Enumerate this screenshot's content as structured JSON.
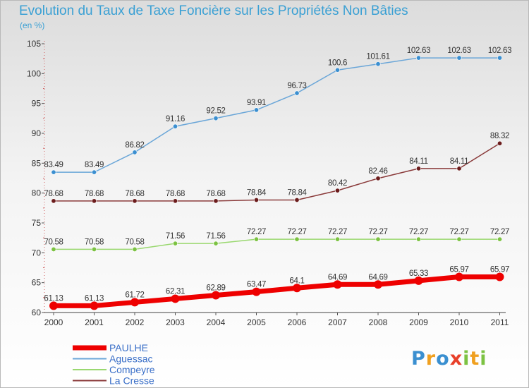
{
  "title": "Evolution du Taux de Taxe Foncière sur les Propriétés Non Bâties",
  "unit_label": "(en %)",
  "logo_text": "Proxiti",
  "chart_data": {
    "type": "line",
    "x": [
      "2000",
      "2001",
      "2002",
      "2003",
      "2004",
      "2005",
      "2006",
      "2007",
      "2008",
      "2009",
      "2010",
      "2011"
    ],
    "ylim": [
      60,
      105
    ],
    "yticks": [
      60,
      65,
      70,
      75,
      80,
      85,
      90,
      95,
      100,
      105
    ],
    "grid": false,
    "legend_position": "bottom-left",
    "series": [
      {
        "name": "Aguessac",
        "color": "#6aa6d8",
        "marker_color": "#3b8fd0",
        "values": [
          83.49,
          83.49,
          86.82,
          91.16,
          92.52,
          93.91,
          96.73,
          100.6,
          101.61,
          102.63,
          102.63,
          102.63
        ],
        "labels": [
          "83.49",
          "83.49",
          "86.82",
          "91.16",
          "92.52",
          "93.91",
          "96.73",
          "100.6",
          "101.61",
          "102.63",
          "102.63",
          "102.63"
        ]
      },
      {
        "name": "La Cresse",
        "color": "#8a3a3a",
        "marker_color": "#6b1c1c",
        "values": [
          78.68,
          78.68,
          78.68,
          78.68,
          78.68,
          78.84,
          78.84,
          80.42,
          82.46,
          84.11,
          84.11,
          88.32
        ],
        "labels": [
          "78.68",
          "78.68",
          "78.68",
          "78.68",
          "78.68",
          "78.84",
          "78.84",
          "80.42",
          "82.46",
          "84.11",
          "84.11",
          "88.32"
        ]
      },
      {
        "name": "Compeyre",
        "color": "#9ad870",
        "marker_color": "#7cc242",
        "values": [
          70.58,
          70.58,
          70.58,
          71.56,
          71.56,
          72.27,
          72.27,
          72.27,
          72.27,
          72.27,
          72.27,
          72.27
        ],
        "labels": [
          "70.58",
          "70.58",
          "70.58",
          "71.56",
          "71.56",
          "72.27",
          "72.27",
          "72.27",
          "72.27",
          "72.27",
          "72.27",
          "72.27"
        ]
      },
      {
        "name": "PAULHE",
        "color": "#ee0000",
        "marker_color": "#ee0000",
        "bold": true,
        "values": [
          61.13,
          61.13,
          61.72,
          62.31,
          62.89,
          63.47,
          64.1,
          64.69,
          64.69,
          65.33,
          65.97,
          65.97
        ],
        "labels": [
          "61.13",
          "61.13",
          "61.72",
          "62.31",
          "62.89",
          "63.47",
          "64.1",
          "64.69",
          "64.69",
          "65.33",
          "65.97",
          "65.97"
        ]
      }
    ],
    "legend_order": [
      "PAULHE",
      "Aguessac",
      "Compeyre",
      "La Cresse"
    ]
  }
}
